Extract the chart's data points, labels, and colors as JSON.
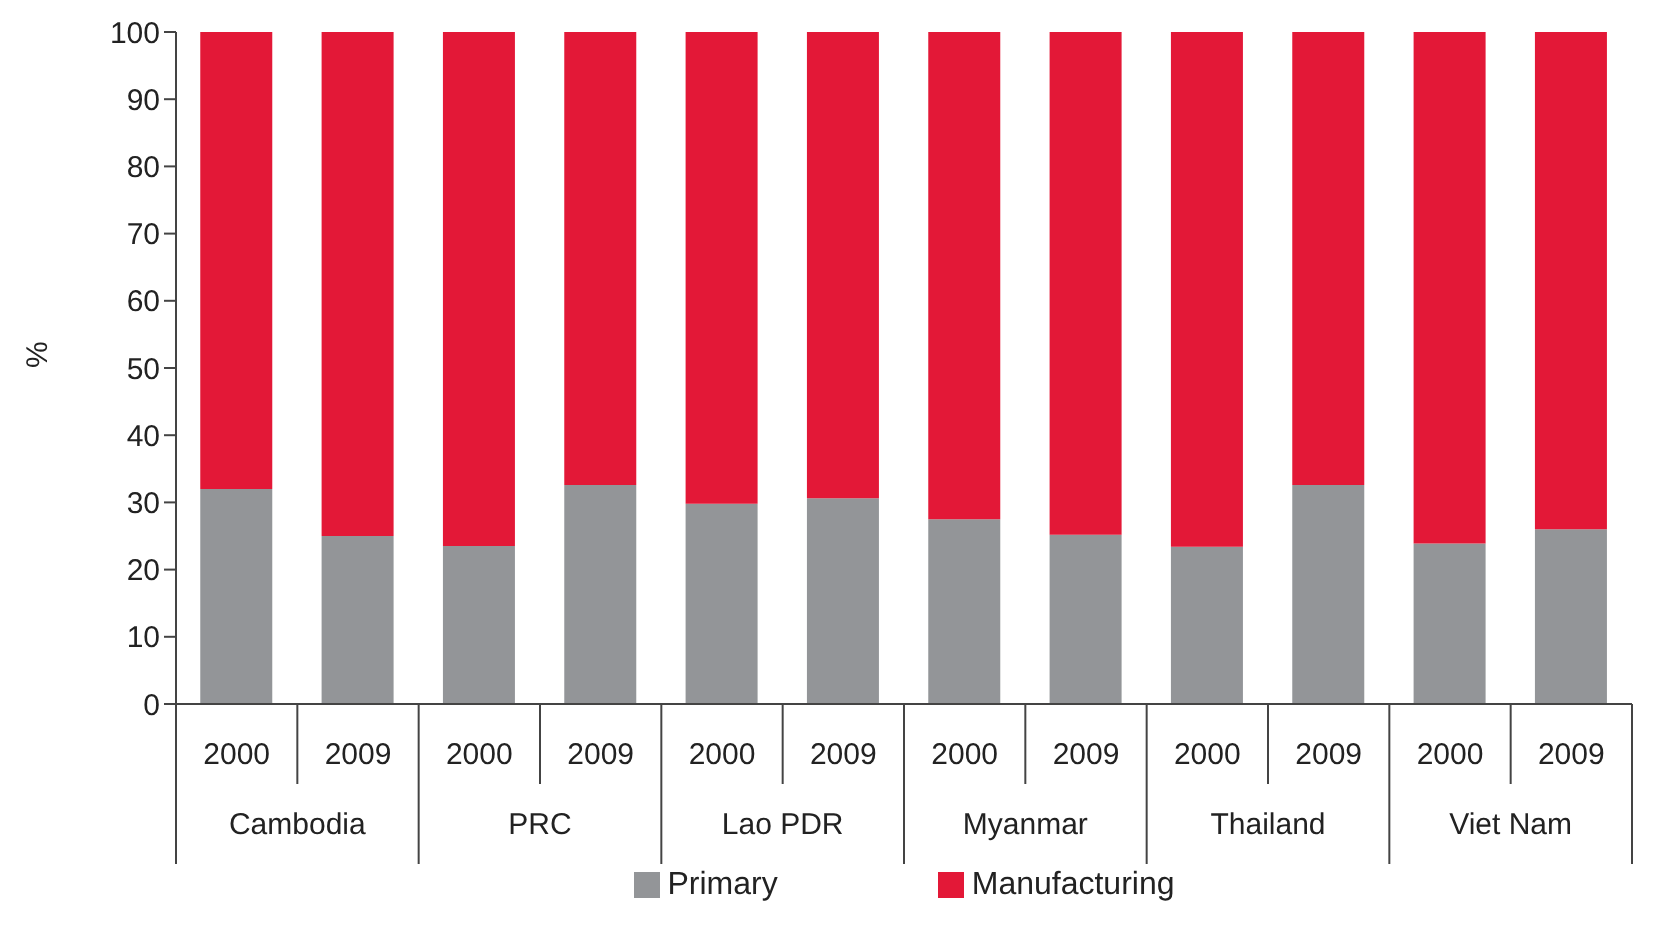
{
  "chart_data": {
    "type": "bar",
    "stacked": true,
    "ylabel": "%",
    "categories": [
      "2000",
      "2009",
      "2000",
      "2009",
      "2000",
      "2009",
      "2000",
      "2009",
      "2000",
      "2009",
      "2000",
      "2009"
    ],
    "annotations": [
      "Cambodia",
      "PRC",
      "Lao PDR",
      "Myanmar",
      "Thailand",
      "Viet Nam"
    ],
    "series": [
      {
        "name": "Primary",
        "color": "#939598",
        "values": [
          32.0,
          25.0,
          23.5,
          32.6,
          29.8,
          30.6,
          27.5,
          25.2,
          23.4,
          32.6,
          23.9,
          26.0
        ]
      },
      {
        "name": "Manufacturing",
        "color": "#e31837",
        "values": [
          68.0,
          75.0,
          76.5,
          67.4,
          70.2,
          69.4,
          72.5,
          74.8,
          76.6,
          67.4,
          76.1,
          74.0
        ]
      }
    ],
    "ylim": [
      0,
      100
    ],
    "yticks": [
      0,
      10,
      20,
      30,
      40,
      50,
      60,
      70,
      80,
      90,
      100
    ],
    "legend": "bottom",
    "grid": false
  }
}
